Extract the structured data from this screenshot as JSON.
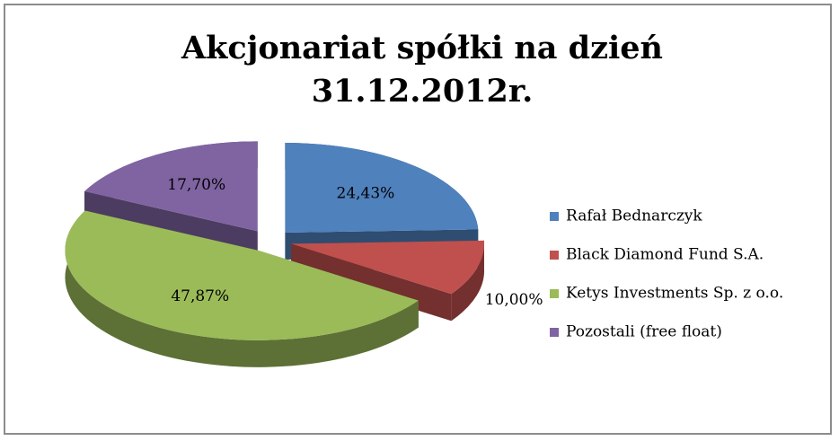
{
  "chart_data": {
    "type": "pie",
    "title": "Akcjonariat spółki na dzień 31.12.2012r.",
    "categories": [
      "Rafał Bednarczyk",
      "Black Diamond Fund S.A.",
      "Ketys Investments Sp. z o.o.",
      "Pozostali (free float)"
    ],
    "values": [
      24.43,
      10.0,
      47.87,
      17.7
    ],
    "value_labels": [
      "24,43%",
      "10,00%",
      "47,87%",
      "17,70%"
    ],
    "colors": [
      "#4f81bd",
      "#c0504d",
      "#9bbb59",
      "#8064a2"
    ],
    "legend": "right"
  }
}
